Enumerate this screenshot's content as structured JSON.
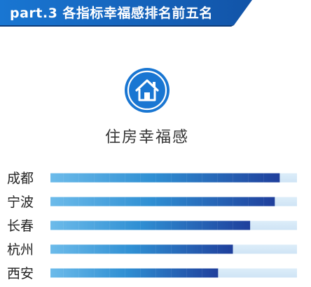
{
  "header": {
    "title": "part.3 各指标幸福感排名前五名"
  },
  "category": {
    "icon": "house-icon",
    "title": "住房幸福感"
  },
  "colors": {
    "banner": "#1565c0",
    "banner_dark": "#0d3c7a",
    "icon_circle": "#1976d2",
    "track": "#d6e9f7",
    "bar_start": "#5fb4e8",
    "bar_end": "#1e3f9a"
  },
  "chart_data": {
    "type": "bar",
    "orientation": "horizontal",
    "categories": [
      "成都",
      "宁波",
      "长春",
      "杭州",
      "西安"
    ],
    "values": [
      93,
      91,
      81,
      74,
      68
    ],
    "xlim": [
      0,
      100
    ],
    "grid": false,
    "legend": "none"
  }
}
